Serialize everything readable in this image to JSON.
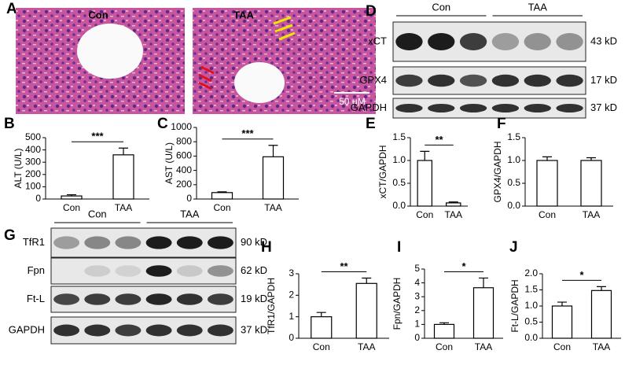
{
  "histology": {
    "panel": "A",
    "labels": [
      "Con",
      "TAA"
    ],
    "scale_bar": "50 μM"
  },
  "blot_D": {
    "panel": "D",
    "groups": [
      "Con",
      "TAA"
    ],
    "rows": [
      {
        "name": "xCT",
        "size": "43 kD"
      },
      {
        "name": "GPX4",
        "size": "17 kD"
      },
      {
        "name": "GAPDH",
        "size": "37 kD"
      }
    ]
  },
  "blot_G": {
    "panel": "G",
    "groups": [
      "Con",
      "TAA"
    ],
    "rows": [
      {
        "name": "TfR1",
        "size": "90 kD"
      },
      {
        "name": "Fpn",
        "size": "62 kD"
      },
      {
        "name": "Ft-L",
        "size": "19 kD"
      },
      {
        "name": "GAPDH",
        "size": "37 kD"
      }
    ]
  },
  "chart_data": [
    {
      "type": "bar",
      "panel": "B",
      "ylabel": "ALT (U/L)",
      "categories": [
        "Con",
        "TAA"
      ],
      "values": [
        25,
        360
      ],
      "errors": [
        10,
        55
      ],
      "significance": "***",
      "color": "#ffffff",
      "ylim": [
        0,
        500
      ],
      "yticks": [
        0,
        100,
        200,
        300,
        400,
        500
      ]
    },
    {
      "type": "bar",
      "panel": "C",
      "ylabel": "AST (U/L)",
      "categories": [
        "Con",
        "TAA"
      ],
      "values": [
        90,
        590
      ],
      "errors": [
        10,
        160
      ],
      "significance": "***",
      "color": "#ffffff",
      "ylim": [
        0,
        1000
      ],
      "yticks": [
        0,
        200,
        400,
        600,
        800,
        1000
      ]
    },
    {
      "type": "bar",
      "panel": "E",
      "ylabel": "xCT/GAPDH",
      "categories": [
        "Con",
        "TAA"
      ],
      "values": [
        1.0,
        0.07
      ],
      "errors": [
        0.2,
        0.02
      ],
      "significance": "**",
      "color": "#ffffff",
      "ylim": [
        0,
        1.5
      ],
      "yticks": [
        {
          "value": 0,
          "label": "0.0"
        },
        0.5,
        {
          "value": 1,
          "label": "1.0"
        },
        1.5
      ]
    },
    {
      "type": "bar",
      "panel": "F",
      "ylabel": "GPX4/GAPDH",
      "categories": [
        "Con",
        "TAA"
      ],
      "values": [
        1.0,
        1.0
      ],
      "errors": [
        0.08,
        0.06
      ],
      "color": "#ffffff",
      "ylim": [
        0,
        1.5
      ],
      "yticks": [
        {
          "value": 0,
          "label": "0.0"
        },
        0.5,
        {
          "value": 1,
          "label": "1.0"
        },
        1.5
      ]
    },
    {
      "type": "bar",
      "panel": "H",
      "ylabel": "TfR1/GAPDH",
      "categories": [
        "Con",
        "TAA"
      ],
      "values": [
        1.0,
        2.55
      ],
      "errors": [
        0.2,
        0.25
      ],
      "significance": "**",
      "color": "#ffffff",
      "ylim": [
        0,
        3
      ],
      "yticks": [
        0,
        1,
        2,
        3
      ]
    },
    {
      "type": "bar",
      "panel": "I",
      "ylabel": "Fpn/GAPDH",
      "categories": [
        "Con",
        "TAA"
      ],
      "values": [
        1.0,
        3.65
      ],
      "errors": [
        0.12,
        0.7
      ],
      "significance": "*",
      "color": "#ffffff",
      "ylim": [
        0,
        5
      ],
      "yticks": [
        0,
        1,
        2,
        3,
        4,
        5
      ]
    },
    {
      "type": "bar",
      "panel": "J",
      "ylabel": "Ft-L/GAPDH",
      "categories": [
        "Con",
        "TAA"
      ],
      "values": [
        1.0,
        1.48
      ],
      "errors": [
        0.12,
        0.12
      ],
      "significance": "*",
      "color": "#ffffff",
      "ylim": [
        0,
        2
      ],
      "yticks": [
        {
          "value": 0,
          "label": "0.0"
        },
        0.5,
        {
          "value": 1,
          "label": "1.0"
        },
        1.5,
        {
          "value": 2,
          "label": "2.0"
        }
      ]
    }
  ]
}
